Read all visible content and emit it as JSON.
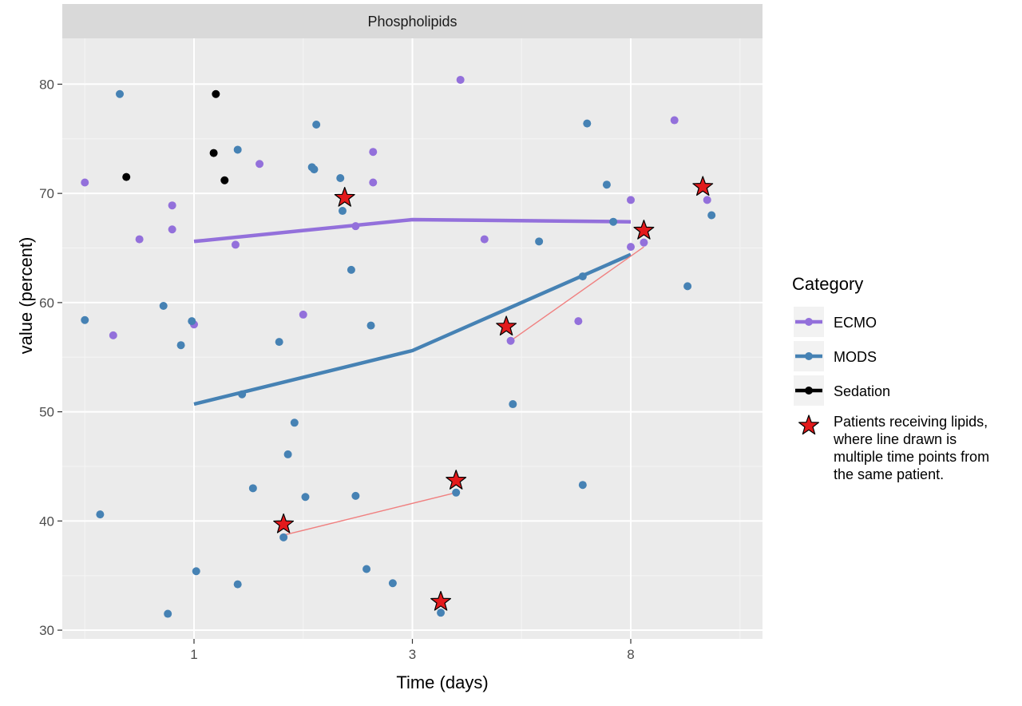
{
  "chart_data": {
    "type": "scatter",
    "panel_title": "Phospholipids",
    "xlabel": "Time (days)",
    "ylabel": "value (percent)",
    "x_ticks": [
      1,
      3,
      8
    ],
    "y_ticks": [
      30,
      40,
      50,
      60,
      70,
      80
    ],
    "ylim": [
      29.2,
      84.2
    ],
    "grid": true,
    "legend": {
      "title": "Category",
      "placement": "right",
      "entries": [
        {
          "name": "ECMO",
          "color": "#9370DB",
          "kind": "line-point"
        },
        {
          "name": "MODS",
          "color": "#4682B4",
          "kind": "line-point"
        },
        {
          "name": "Sedation",
          "color": "#000000",
          "kind": "line-point"
        },
        {
          "name": "Patients receiving lipids, where line drawn is multiple time points from the same patient.",
          "color": "#E31A1C",
          "kind": "star",
          "lines": [
            "Patients receiving lipids,",
            "where line drawn is",
            "multiple time points from",
            "the same patient."
          ]
        }
      ]
    },
    "series": [
      {
        "name": "ECMO",
        "color": "#9370DB",
        "trend": [
          {
            "x": 1,
            "y": 65.6
          },
          {
            "x": 3,
            "y": 67.6
          },
          {
            "x": 8,
            "y": 67.4
          }
        ],
        "points": [
          {
            "x": 1,
            "dx": -0.5,
            "y": 71.0
          },
          {
            "x": 1,
            "dx": -0.37,
            "y": 57.0
          },
          {
            "x": 1,
            "dx": -0.25,
            "y": 65.8
          },
          {
            "x": 1,
            "dx": -0.1,
            "y": 68.9
          },
          {
            "x": 1,
            "dx": -0.1,
            "y": 66.7
          },
          {
            "x": 1,
            "dx": 0.0,
            "y": 58.0
          },
          {
            "x": 1,
            "dx": 0.19,
            "y": 65.3
          },
          {
            "x": 1,
            "dx": 0.3,
            "y": 72.7
          },
          {
            "x": 3,
            "dx": -0.5,
            "y": 58.9
          },
          {
            "x": 3,
            "dx": -0.26,
            "y": 67.0
          },
          {
            "x": 3,
            "dx": -0.18,
            "y": 73.8
          },
          {
            "x": 3,
            "dx": -0.18,
            "y": 71.0
          },
          {
            "x": 3,
            "dx": 0.22,
            "y": 80.4
          },
          {
            "x": 3,
            "dx": 0.33,
            "y": 65.8
          },
          {
            "x": 3,
            "dx": 0.45,
            "y": 56.5
          },
          {
            "x": 8,
            "dx": -0.24,
            "y": 58.3
          },
          {
            "x": 8,
            "dx": 0.0,
            "y": 69.4
          },
          {
            "x": 8,
            "dx": 0.0,
            "y": 65.1
          },
          {
            "x": 8,
            "dx": 0.06,
            "y": 65.5
          },
          {
            "x": 8,
            "dx": 0.2,
            "y": 76.7
          },
          {
            "x": 8,
            "dx": 0.35,
            "y": 69.4
          }
        ]
      },
      {
        "name": "MODS",
        "color": "#4682B4",
        "trend": [
          {
            "x": 1,
            "y": 50.7
          },
          {
            "x": 3,
            "y": 55.6
          },
          {
            "x": 8,
            "y": 64.4
          }
        ],
        "points": [
          {
            "x": 1,
            "dx": -0.5,
            "y": 58.4
          },
          {
            "x": 1,
            "dx": -0.43,
            "y": 40.6
          },
          {
            "x": 1,
            "dx": -0.34,
            "y": 79.1
          },
          {
            "x": 1,
            "dx": -0.14,
            "y": 59.7
          },
          {
            "x": 1,
            "dx": -0.12,
            "y": 31.5
          },
          {
            "x": 1,
            "dx": -0.06,
            "y": 56.1
          },
          {
            "x": 1,
            "dx": -0.01,
            "y": 58.3
          },
          {
            "x": 1,
            "dx": 0.01,
            "y": 35.4
          },
          {
            "x": 1,
            "dx": 0.2,
            "y": 34.2
          },
          {
            "x": 1,
            "dx": 0.2,
            "y": 74.0
          },
          {
            "x": 1,
            "dx": 0.22,
            "y": 51.6
          },
          {
            "x": 1,
            "dx": 0.27,
            "y": 43.0
          },
          {
            "x": 1,
            "dx": 0.39,
            "y": 56.4
          },
          {
            "x": 1,
            "dx": 0.41,
            "y": 38.5
          },
          {
            "x": 1,
            "dx": 0.43,
            "y": 46.1
          },
          {
            "x": 1,
            "dx": 0.46,
            "y": 49.0
          },
          {
            "x": 3,
            "dx": -0.46,
            "y": 72.4
          },
          {
            "x": 3,
            "dx": -0.45,
            "y": 72.2
          },
          {
            "x": 3,
            "dx": -0.44,
            "y": 76.3
          },
          {
            "x": 3,
            "dx": -0.49,
            "y": 42.2
          },
          {
            "x": 3,
            "dx": -0.33,
            "y": 71.4
          },
          {
            "x": 3,
            "dx": -0.32,
            "y": 68.4
          },
          {
            "x": 3,
            "dx": -0.28,
            "y": 63.0
          },
          {
            "x": 3,
            "dx": -0.26,
            "y": 42.3
          },
          {
            "x": 3,
            "dx": -0.21,
            "y": 35.6
          },
          {
            "x": 3,
            "dx": -0.19,
            "y": 57.9
          },
          {
            "x": 3,
            "dx": -0.09,
            "y": 34.3
          },
          {
            "x": 3,
            "dx": 0.13,
            "y": 31.6
          },
          {
            "x": 3,
            "dx": 0.2,
            "y": 42.6
          },
          {
            "x": 3,
            "dx": 0.46,
            "y": 50.7
          },
          {
            "x": 8,
            "dx": -0.42,
            "y": 65.6
          },
          {
            "x": 8,
            "dx": -0.22,
            "y": 43.3
          },
          {
            "x": 8,
            "dx": -0.22,
            "y": 62.4
          },
          {
            "x": 8,
            "dx": -0.2,
            "y": 76.4
          },
          {
            "x": 8,
            "dx": -0.11,
            "y": 70.8
          },
          {
            "x": 8,
            "dx": -0.08,
            "y": 67.4
          },
          {
            "x": 8,
            "dx": 0.26,
            "y": 61.5
          },
          {
            "x": 8,
            "dx": 0.37,
            "y": 68.0
          }
        ]
      },
      {
        "name": "Sedation",
        "color": "#000000",
        "trend": [],
        "points": [
          {
            "x": 1,
            "dx": -0.31,
            "y": 71.5
          },
          {
            "x": 1,
            "dx": 0.09,
            "y": 73.7
          },
          {
            "x": 1,
            "dx": 0.1,
            "y": 79.1
          },
          {
            "x": 1,
            "dx": 0.14,
            "y": 71.2
          }
        ]
      }
    ],
    "lipid_patients": {
      "color": "#E31A1C",
      "stars": [
        {
          "x": 1,
          "dx": 0.41,
          "y": 39.7
        },
        {
          "x": 3,
          "dx": -0.31,
          "y": 69.6
        },
        {
          "x": 3,
          "dx": 0.13,
          "y": 32.6
        },
        {
          "x": 3,
          "dx": 0.2,
          "y": 43.7
        },
        {
          "x": 3,
          "dx": 0.43,
          "y": 57.8
        },
        {
          "x": 8,
          "dx": 0.06,
          "y": 66.6
        },
        {
          "x": 8,
          "dx": 0.33,
          "y": 70.6
        }
      ],
      "segments": [
        [
          {
            "x": 1,
            "dx": 0.41,
            "y": 38.7
          },
          {
            "x": 3,
            "dx": 0.2,
            "y": 42.6
          }
        ],
        [
          {
            "x": 3,
            "dx": 0.45,
            "y": 56.5
          },
          {
            "x": 8,
            "dx": 0.06,
            "y": 65.1
          }
        ]
      ]
    }
  }
}
